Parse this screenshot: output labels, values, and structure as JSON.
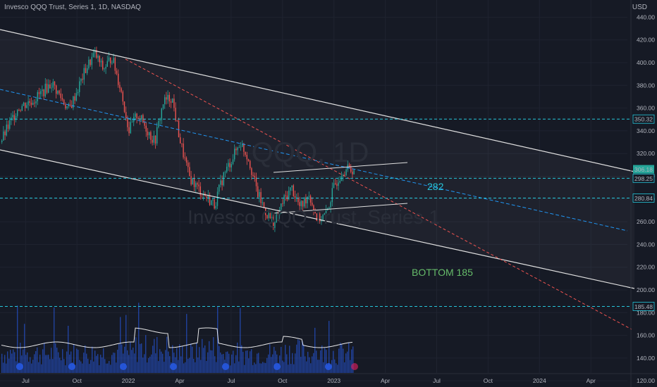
{
  "header": {
    "symbol_line": "Invesco QQQ Trust, Series 1, 1D, NASDAQ",
    "currency": "USD"
  },
  "watermark": {
    "symbol": "QQQ, 1D",
    "name": "Invesco QQQ Trust, Series 1"
  },
  "chart_data": {
    "type": "candlestick",
    "ylim": [
      110,
      450
    ],
    "y_ticks": [
      120,
      140,
      160,
      180,
      200,
      220,
      240,
      260,
      280,
      300,
      320,
      340,
      360,
      380,
      400,
      420,
      440
    ],
    "x_ticks": [
      "Jul",
      "Oct",
      "2022",
      "Apr",
      "Jul",
      "Oct",
      "2023",
      "Apr",
      "Jul",
      "Oct",
      "2024",
      "Apr"
    ],
    "price_path": [
      [
        "2021-06",
        330
      ],
      [
        "2021-07",
        360
      ],
      [
        "2021-08",
        368
      ],
      [
        "2021-09",
        382
      ],
      [
        "2021-10",
        358
      ],
      [
        "2021-11",
        395
      ],
      [
        "2021-11",
        408
      ],
      [
        "2021-12",
        394
      ],
      [
        "2021-12",
        405
      ],
      [
        "2022-01",
        378
      ],
      [
        "2022-01",
        340
      ],
      [
        "2022-02",
        355
      ],
      [
        "2022-03",
        330
      ],
      [
        "2022-03",
        365
      ],
      [
        "2022-04",
        370
      ],
      [
        "2022-04",
        330
      ],
      [
        "2022-05",
        300
      ],
      [
        "2022-05",
        290
      ],
      [
        "2022-06",
        282
      ],
      [
        "2022-06",
        275
      ],
      [
        "2022-07",
        300
      ],
      [
        "2022-08",
        330
      ],
      [
        "2022-08",
        315
      ],
      [
        "2022-09",
        285
      ],
      [
        "2022-09",
        268
      ],
      [
        "2022-10",
        258
      ],
      [
        "2022-10",
        278
      ],
      [
        "2022-11",
        290
      ],
      [
        "2022-11",
        272
      ],
      [
        "2022-12",
        285
      ],
      [
        "2022-12",
        262
      ],
      [
        "2023-01",
        266
      ],
      [
        "2023-01",
        292
      ],
      [
        "2023-02",
        306
      ]
    ],
    "horizontal_levels": [
      {
        "label": "350.32",
        "value": 350.32
      },
      {
        "label": "298.25",
        "value": 298.25
      },
      {
        "label": "280.84",
        "value": 280.84
      },
      {
        "label": "185.48",
        "value": 185.48
      }
    ],
    "last_price": {
      "label": "306.18",
      "value": 306.18
    },
    "annotations": [
      {
        "text": "282",
        "color": "#26c6da"
      },
      {
        "text": "BOTTOM 185",
        "color": "#66bb6a"
      }
    ],
    "volume_ylim": [
      0,
      1
    ]
  },
  "colors": {
    "background": "#161a25",
    "bull": "#26a69a",
    "bear": "#ef5350",
    "volume": "#2962ff",
    "level": "#26c6da",
    "midline": "#2196f3",
    "downtrend": "#ef5350",
    "channel": "#e0e0e0"
  }
}
